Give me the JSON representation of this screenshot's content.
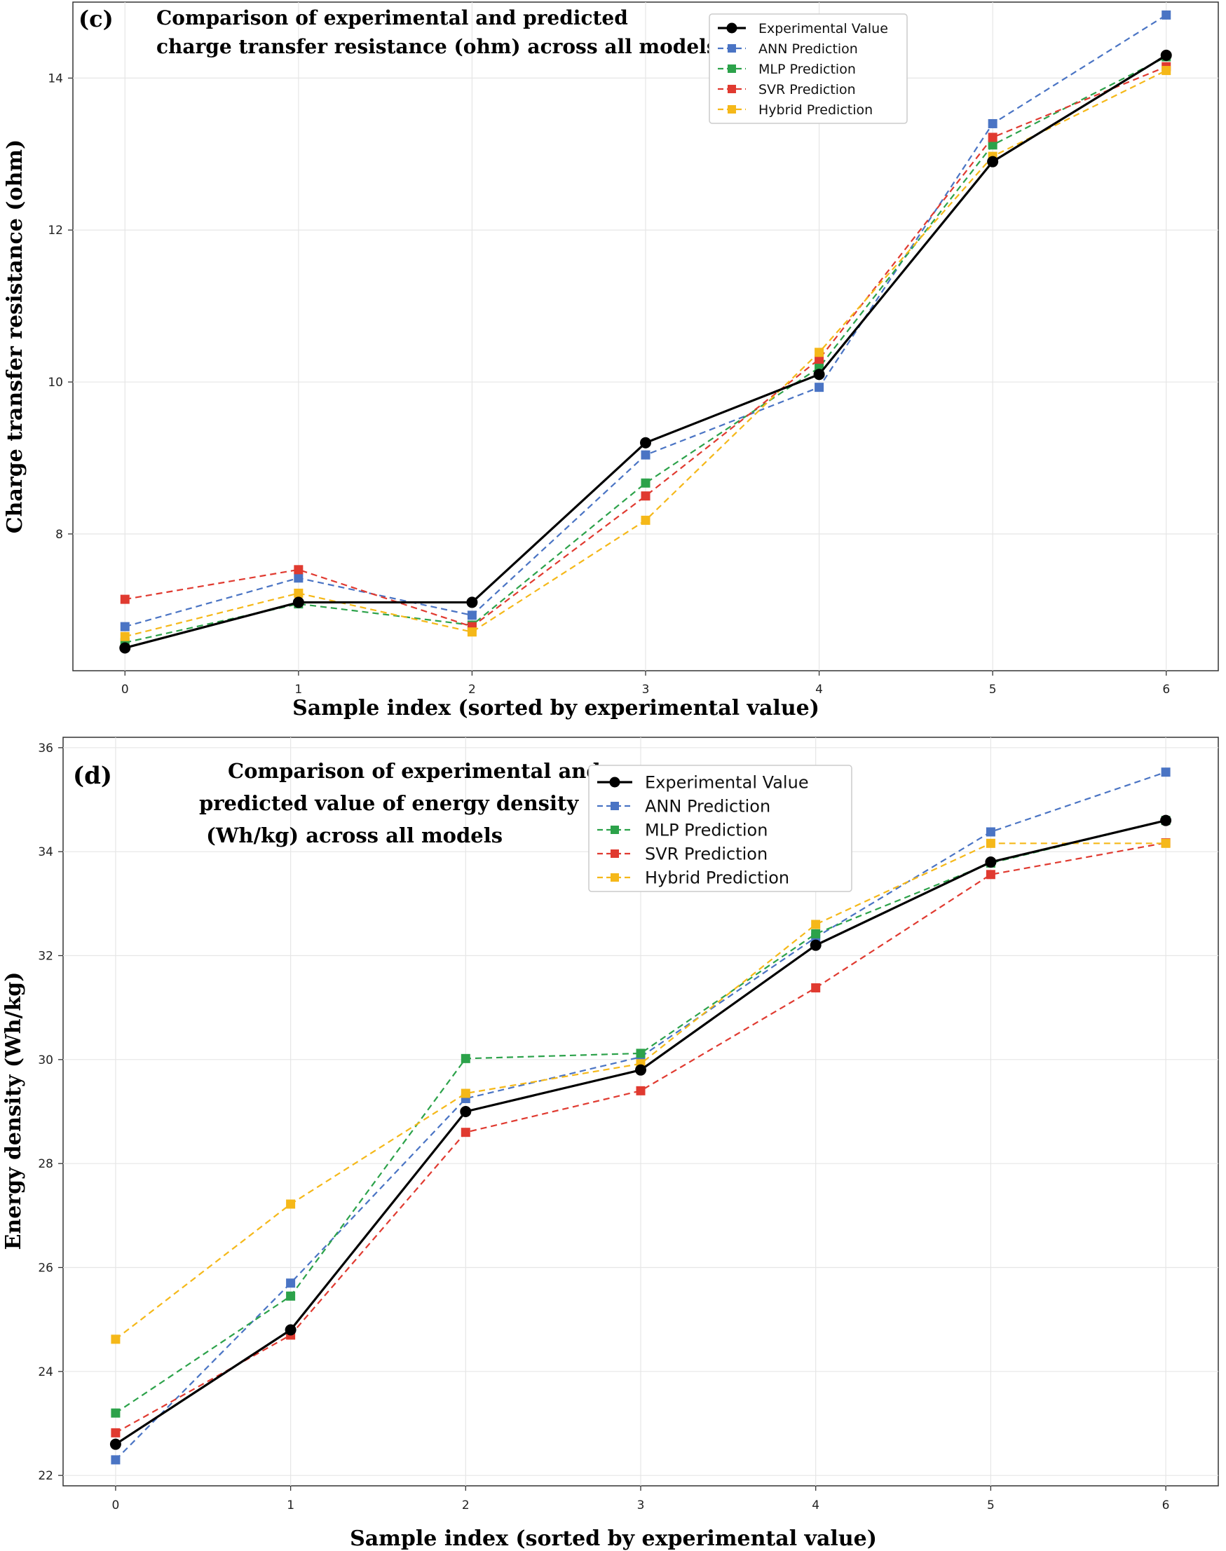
{
  "chart_data": [
    {
      "type": "line",
      "panel_label": "(c)",
      "title": [
        "Comparison of experimental and predicted",
        "charge transfer resistance (ohm) across all models"
      ],
      "xlabel": "Sample index (sorted by experimental value)",
      "ylabel": "Charge transfer resistance (ohm)",
      "x": [
        0,
        1,
        2,
        3,
        4,
        5,
        6
      ],
      "xlim": [
        -0.3,
        6.3
      ],
      "ylim": [
        6.2,
        15.0
      ],
      "yticks": [
        8,
        10,
        12,
        14
      ],
      "grid": true,
      "legend_position": "top-right",
      "series": [
        {
          "name": "Experimental Value",
          "color": "#000000",
          "style": "solid",
          "marker": "circle",
          "values": [
            6.5,
            7.1,
            7.1,
            9.2,
            10.1,
            12.9,
            14.3
          ]
        },
        {
          "name": "ANN Prediction",
          "color": "#4a74c4",
          "style": "dashed",
          "marker": "square",
          "values": [
            6.78,
            7.42,
            6.93,
            9.04,
            9.93,
            13.4,
            14.83
          ]
        },
        {
          "name": "MLP Prediction",
          "color": "#2ca24a",
          "style": "dashed",
          "marker": "square",
          "values": [
            6.57,
            7.08,
            6.8,
            8.67,
            10.19,
            13.12,
            14.28
          ]
        },
        {
          "name": "SVR Prediction",
          "color": "#e03a30",
          "style": "dashed",
          "marker": "square",
          "values": [
            7.14,
            7.53,
            6.78,
            8.5,
            10.3,
            13.22,
            14.15
          ]
        },
        {
          "name": "Hybrid Prediction",
          "color": "#f5b819",
          "style": "dashed",
          "marker": "square",
          "values": [
            6.65,
            7.22,
            6.71,
            8.18,
            10.39,
            12.97,
            14.1
          ]
        }
      ]
    },
    {
      "type": "line",
      "panel_label": "(d)",
      "title": [
        "Comparison of experimental and",
        "predicted value of energy density",
        " (Wh/kg) across all models"
      ],
      "xlabel": "Sample index (sorted by experimental value)",
      "ylabel": "Energy density (Wh/kg)",
      "x": [
        0,
        1,
        2,
        3,
        4,
        5,
        6
      ],
      "xlim": [
        -0.3,
        6.3
      ],
      "ylim": [
        21.8,
        36.2
      ],
      "yticks": [
        22,
        24,
        26,
        28,
        30,
        32,
        34,
        36
      ],
      "grid": true,
      "legend_position": "top-right",
      "series": [
        {
          "name": "Experimental Value",
          "color": "#000000",
          "style": "solid",
          "marker": "circle",
          "values": [
            22.6,
            24.8,
            29.0,
            29.8,
            32.2,
            33.8,
            34.6
          ]
        },
        {
          "name": "ANN Prediction",
          "color": "#4a74c4",
          "style": "dashed",
          "marker": "square",
          "values": [
            22.3,
            25.7,
            29.25,
            30.05,
            32.35,
            34.38,
            35.53
          ]
        },
        {
          "name": "MLP Prediction",
          "color": "#2ca24a",
          "style": "dashed",
          "marker": "square",
          "values": [
            23.2,
            25.45,
            30.02,
            30.12,
            32.42,
            33.78,
            34.6
          ]
        },
        {
          "name": "SVR Prediction",
          "color": "#e03a30",
          "style": "dashed",
          "marker": "square",
          "values": [
            22.82,
            24.7,
            28.6,
            29.4,
            31.38,
            33.56,
            34.17
          ]
        },
        {
          "name": "Hybrid Prediction",
          "color": "#f5b819",
          "style": "dashed",
          "marker": "square",
          "values": [
            24.62,
            27.22,
            29.35,
            29.92,
            32.6,
            34.16,
            34.16
          ]
        }
      ]
    }
  ]
}
